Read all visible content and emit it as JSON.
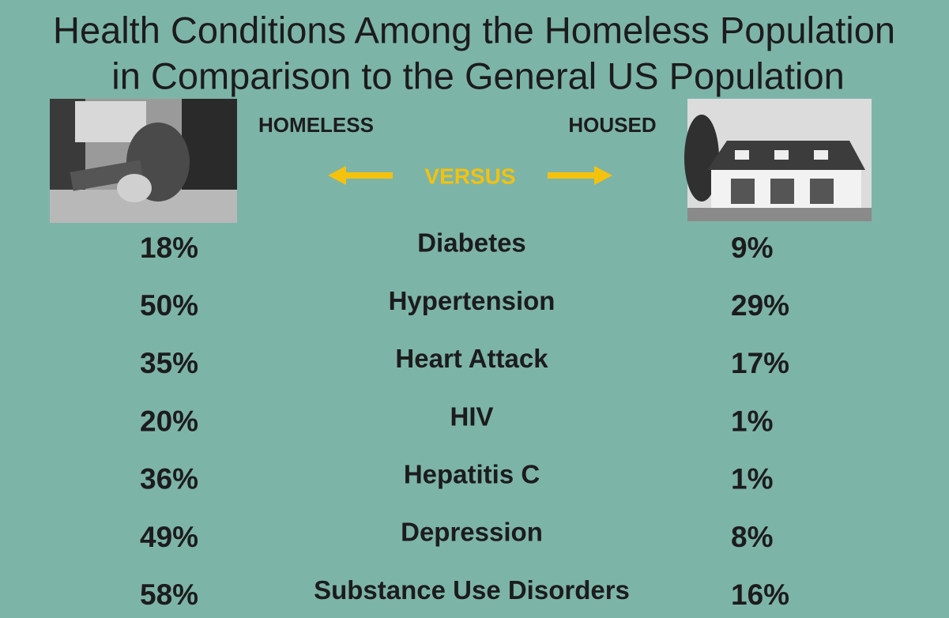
{
  "header": {
    "title_lines": [
      "Health Conditions Among the Homeless Population",
      "in Comparison to the General US Population"
    ]
  },
  "labels": {
    "left": "HOMELESS",
    "right": "HOUSED",
    "center": "VERSUS"
  },
  "table": {
    "rows": [
      [
        "18%",
        "Diabetes",
        "9%"
      ],
      [
        "50%",
        "Hypertension",
        "29%"
      ],
      [
        "35%",
        "Heart Attack",
        "17%"
      ],
      [
        "20%",
        "HIV",
        "1%"
      ],
      [
        "36%",
        "Hepatitis C",
        "1%"
      ],
      [
        "49%",
        "Depression",
        "8%"
      ],
      [
        "58%",
        "Substance Use Disorders",
        "16%"
      ]
    ]
  }
}
